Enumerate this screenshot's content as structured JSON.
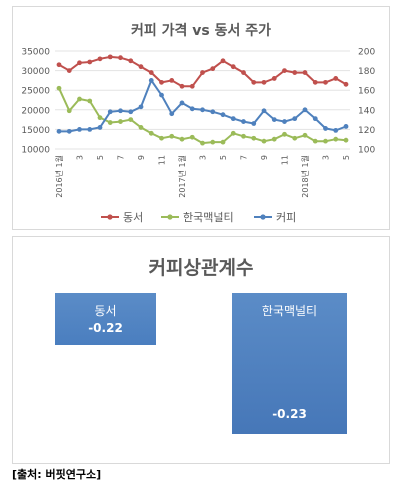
{
  "chart_data": [
    {
      "type": "line",
      "title": "커피 가격 vs 동서 주가",
      "categories": [
        "2016년 1월",
        "2",
        "3",
        "4",
        "5",
        "6",
        "7",
        "8",
        "9",
        "10",
        "11",
        "12",
        "2017년 1월",
        "2",
        "3",
        "4",
        "5",
        "6",
        "7",
        "8",
        "9",
        "10",
        "11",
        "12",
        "2018년 1월",
        "2",
        "3",
        "4",
        "5"
      ],
      "x_tick_labels": [
        "2016년 1월",
        "3",
        "5",
        "7",
        "9",
        "11",
        "2017년 1월",
        "3",
        "5",
        "7",
        "9",
        "11",
        "2018년 1월",
        "3",
        "5"
      ],
      "y_left": {
        "ticks": [
          "10000",
          "15000",
          "20000",
          "25000",
          "30000",
          "35000"
        ],
        "range": [
          10000,
          35000
        ]
      },
      "y_right": {
        "ticks": [
          "100",
          "120",
          "140",
          "160",
          "180",
          "200"
        ],
        "range": [
          100,
          200
        ]
      },
      "series": [
        {
          "name": "동서",
          "color": "#c0504d",
          "axis": "left",
          "values": [
            31500,
            30000,
            32000,
            32200,
            33000,
            33500,
            33300,
            32500,
            31000,
            29500,
            27000,
            27500,
            26000,
            26000,
            29500,
            30500,
            32500,
            31000,
            29500,
            27000,
            27000,
            28000,
            30000,
            29500,
            29500,
            27000,
            27000,
            28000,
            26500
          ]
        },
        {
          "name": "한국맥널티",
          "color": "#9bbb59",
          "axis": "right",
          "values": [
            162,
            139,
            151,
            149,
            132,
            127,
            128,
            130,
            122,
            116,
            111,
            113,
            110,
            112,
            106,
            107,
            107,
            116,
            113,
            111,
            108,
            110,
            115,
            111,
            114,
            108,
            108,
            110,
            109
          ]
        },
        {
          "name": "커피",
          "color": "#4f81bd",
          "axis": "right",
          "values": [
            118,
            118,
            120,
            120,
            122,
            138,
            139,
            138,
            143,
            170,
            155,
            136,
            147,
            141,
            140,
            138,
            135,
            131,
            128,
            126,
            139,
            130,
            128,
            131,
            140,
            131,
            121,
            119,
            123
          ]
        }
      ]
    },
    {
      "type": "bar",
      "title": "커피상관계수",
      "categories": [
        "동서",
        "한국맥널티"
      ],
      "values": [
        -0.22,
        -0.23
      ],
      "value_labels": [
        "-0.22",
        "-0.23"
      ],
      "color": "#4f81bd"
    }
  ],
  "source": "[출처: 버핏연구소]"
}
